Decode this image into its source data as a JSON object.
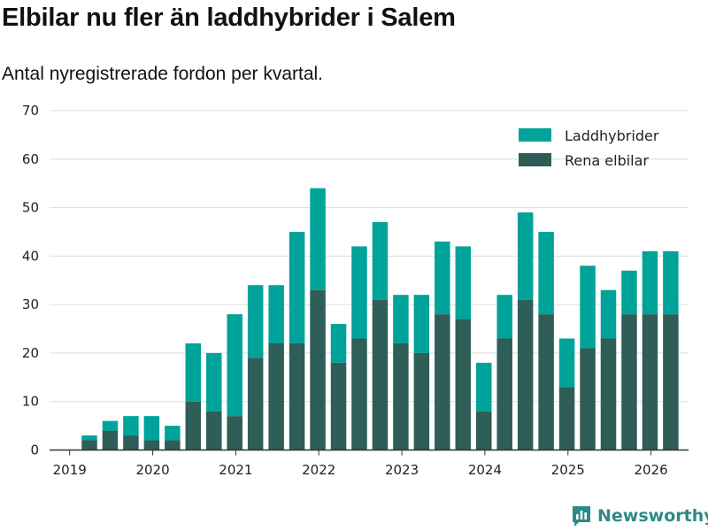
{
  "header": {
    "title": "Elbilar nu fler än laddhybrider i Salem",
    "subtitle": "Antal nyregistrerade fordon per kvartal."
  },
  "brand": {
    "name": "Newsworthy",
    "icon": "bar-chart-logo-icon"
  },
  "colors": {
    "phev": "#00a39a",
    "bev": "#2f5d57",
    "grid": "#dddddd",
    "axis": "#333333",
    "brand": "#2d8a84"
  },
  "chart_data": {
    "type": "bar",
    "stacked": true,
    "quarters": [
      "2019Q1",
      "2019Q2",
      "2019Q3",
      "2019Q4",
      "2020Q1",
      "2020Q2",
      "2020Q3",
      "2020Q4",
      "2021Q1",
      "2021Q2",
      "2021Q3",
      "2021Q4",
      "2022Q1",
      "2022Q2",
      "2022Q3",
      "2022Q4",
      "2023Q1",
      "2023Q2",
      "2023Q3",
      "2023Q4",
      "2024Q1",
      "2024Q2",
      "2024Q3",
      "2024Q4",
      "2025Q1",
      "2025Q2",
      "2025Q3",
      "2025Q4",
      "2026Q1"
    ],
    "series": [
      {
        "name": "Rena elbilar",
        "values": [
          2,
          4,
          3,
          2,
          2,
          10,
          8,
          7,
          19,
          22,
          22,
          33,
          18,
          23,
          31,
          22,
          20,
          28,
          27,
          8,
          23,
          31,
          28,
          13,
          21,
          23,
          28,
          28,
          28
        ]
      },
      {
        "name": "Laddhybrider",
        "values": [
          1,
          2,
          4,
          5,
          3,
          12,
          12,
          21,
          15,
          12,
          23,
          21,
          8,
          19,
          16,
          10,
          12,
          15,
          15,
          10,
          9,
          18,
          17,
          10,
          17,
          10,
          9,
          13,
          13
        ]
      }
    ],
    "x_tick_labels": [
      "2019",
      "2020",
      "2021",
      "2022",
      "2023",
      "2024",
      "2025",
      "2026"
    ],
    "y_tick_labels": [
      "0",
      "10",
      "20",
      "30",
      "40",
      "50",
      "60",
      "70"
    ],
    "ylim": [
      0,
      70
    ],
    "legend_order": [
      "Laddhybrider",
      "Rena elbilar"
    ],
    "legend_position": "top-right",
    "grid": true
  }
}
